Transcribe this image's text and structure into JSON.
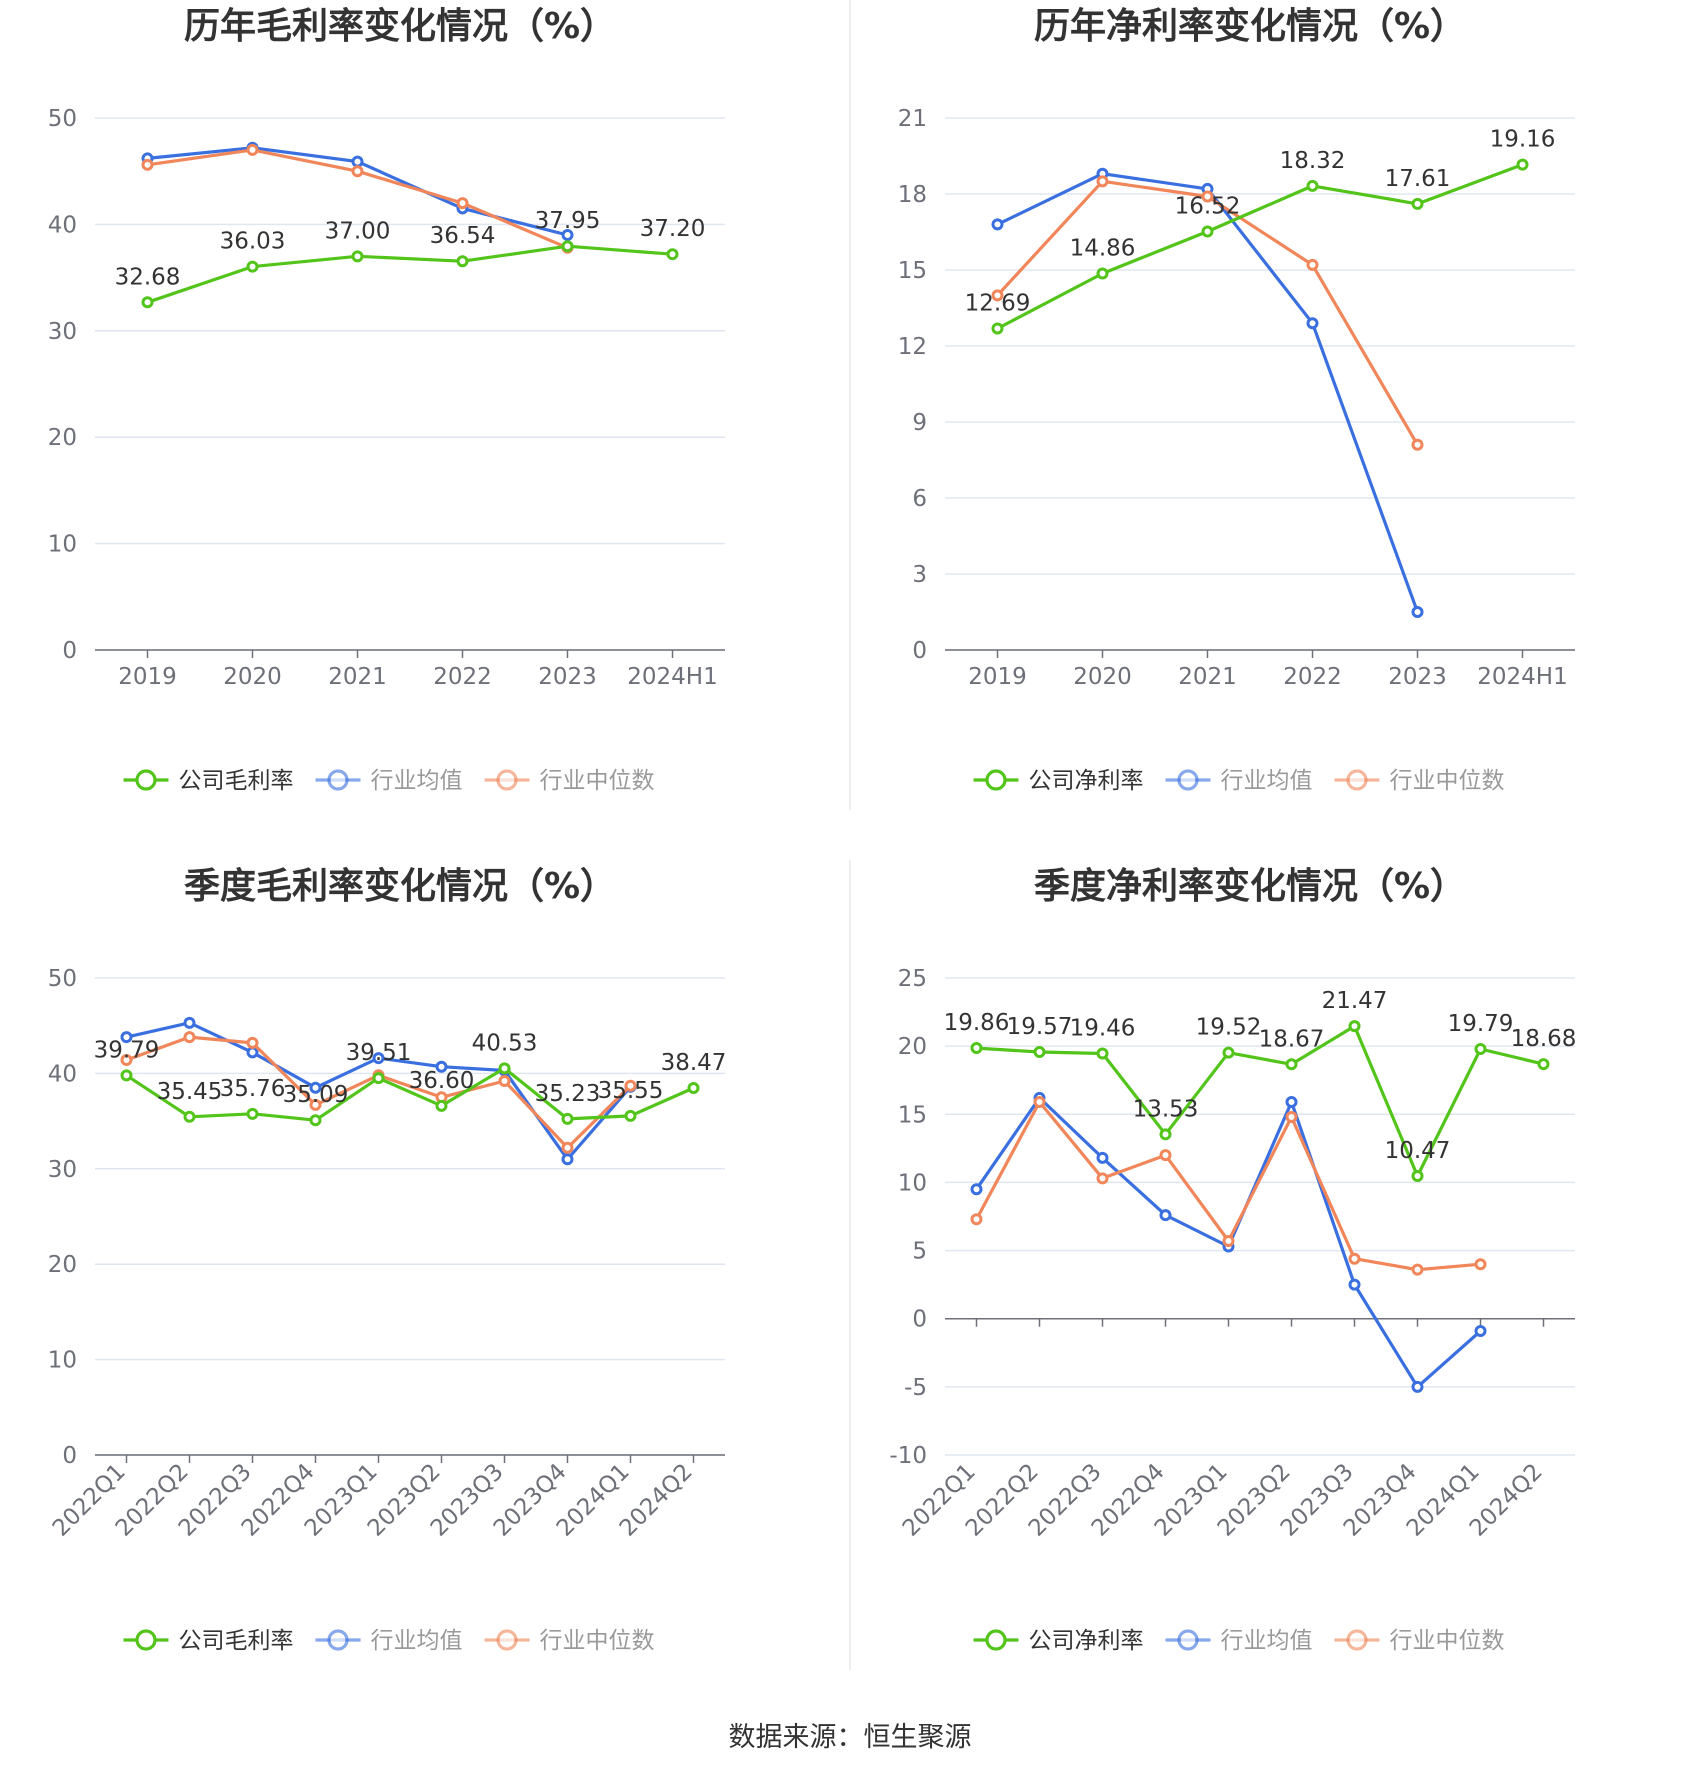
{
  "charts": [
    {
      "type": "line",
      "title": "历年毛利率变化情况（%）",
      "x": [
        "2019",
        "2020",
        "2021",
        "2022",
        "2023",
        "2024H1"
      ],
      "ylim": [
        0,
        50
      ],
      "yticks": [
        0,
        10,
        20,
        30,
        40,
        50
      ],
      "series": [
        {
          "name": "公司毛利率",
          "color": "#52c41a",
          "values": [
            32.68,
            36.03,
            37.0,
            36.54,
            37.95,
            37.2
          ],
          "labels": true
        },
        {
          "name": "行业均值",
          "color": "#3a6fe0",
          "values": [
            46.2,
            47.2,
            45.9,
            41.5,
            39.0,
            null
          ],
          "labels": false
        },
        {
          "name": "行业中位数",
          "color": "#f08659",
          "values": [
            45.6,
            47.0,
            45.0,
            42.0,
            37.8,
            null
          ],
          "labels": false
        }
      ],
      "xlabel_rotate": false
    },
    {
      "type": "line",
      "title": "历年净利率变化情况（%）",
      "x": [
        "2019",
        "2020",
        "2021",
        "2022",
        "2023",
        "2024H1"
      ],
      "ylim": [
        0,
        21
      ],
      "yticks": [
        0,
        3,
        6,
        9,
        12,
        15,
        18,
        21
      ],
      "series": [
        {
          "name": "公司净利率",
          "color": "#52c41a",
          "values": [
            12.69,
            14.86,
            16.52,
            18.32,
            17.61,
            19.16
          ],
          "labels": true
        },
        {
          "name": "行业均值",
          "color": "#3a6fe0",
          "values": [
            16.8,
            18.8,
            18.2,
            12.9,
            1.5,
            null
          ],
          "labels": false
        },
        {
          "name": "行业中位数",
          "color": "#f08659",
          "values": [
            14.0,
            18.5,
            17.9,
            15.2,
            8.1,
            null
          ],
          "labels": false
        }
      ],
      "xlabel_rotate": false
    },
    {
      "type": "line",
      "title": "季度毛利率变化情况（%）",
      "x": [
        "2022Q1",
        "2022Q2",
        "2022Q3",
        "2022Q4",
        "2023Q1",
        "2023Q2",
        "2023Q3",
        "2023Q4",
        "2024Q1",
        "2024Q2"
      ],
      "ylim": [
        0,
        50
      ],
      "yticks": [
        0,
        10,
        20,
        30,
        40,
        50
      ],
      "series": [
        {
          "name": "公司毛利率",
          "color": "#52c41a",
          "values": [
            39.79,
            35.45,
            35.76,
            35.09,
            39.51,
            36.6,
            40.53,
            35.23,
            35.55,
            38.47
          ],
          "labels": true
        },
        {
          "name": "行业均值",
          "color": "#3a6fe0",
          "values": [
            43.8,
            45.3,
            42.2,
            38.5,
            41.6,
            40.7,
            40.3,
            31.0,
            38.6,
            null
          ],
          "labels": false
        },
        {
          "name": "行业中位数",
          "color": "#f08659",
          "values": [
            41.4,
            43.8,
            43.2,
            36.7,
            39.8,
            37.5,
            39.2,
            32.2,
            38.7,
            null
          ],
          "labels": false
        }
      ],
      "xlabel_rotate": true
    },
    {
      "type": "line",
      "title": "季度净利率变化情况（%）",
      "x": [
        "2022Q1",
        "2022Q2",
        "2022Q3",
        "2022Q4",
        "2023Q1",
        "2023Q2",
        "2023Q3",
        "2023Q4",
        "2024Q1",
        "2024Q2"
      ],
      "ylim": [
        -10,
        25
      ],
      "yticks": [
        -10,
        -5,
        0,
        5,
        10,
        15,
        20,
        25
      ],
      "series": [
        {
          "name": "公司净利率",
          "color": "#52c41a",
          "values": [
            19.86,
            19.57,
            19.46,
            13.53,
            19.52,
            18.67,
            21.47,
            10.47,
            19.79,
            18.68
          ],
          "labels": true
        },
        {
          "name": "行业均值",
          "color": "#3a6fe0",
          "values": [
            9.5,
            16.2,
            11.8,
            7.6,
            5.3,
            15.9,
            2.5,
            -5.0,
            -0.9,
            null
          ],
          "labels": false
        },
        {
          "name": "行业中位数",
          "color": "#f08659",
          "values": [
            7.3,
            15.9,
            10.3,
            12.0,
            5.7,
            14.8,
            4.4,
            3.6,
            4.0,
            null
          ],
          "labels": false
        }
      ],
      "xlabel_rotate": true
    }
  ],
  "footer": {
    "source": "数据来源：恒生聚源"
  }
}
